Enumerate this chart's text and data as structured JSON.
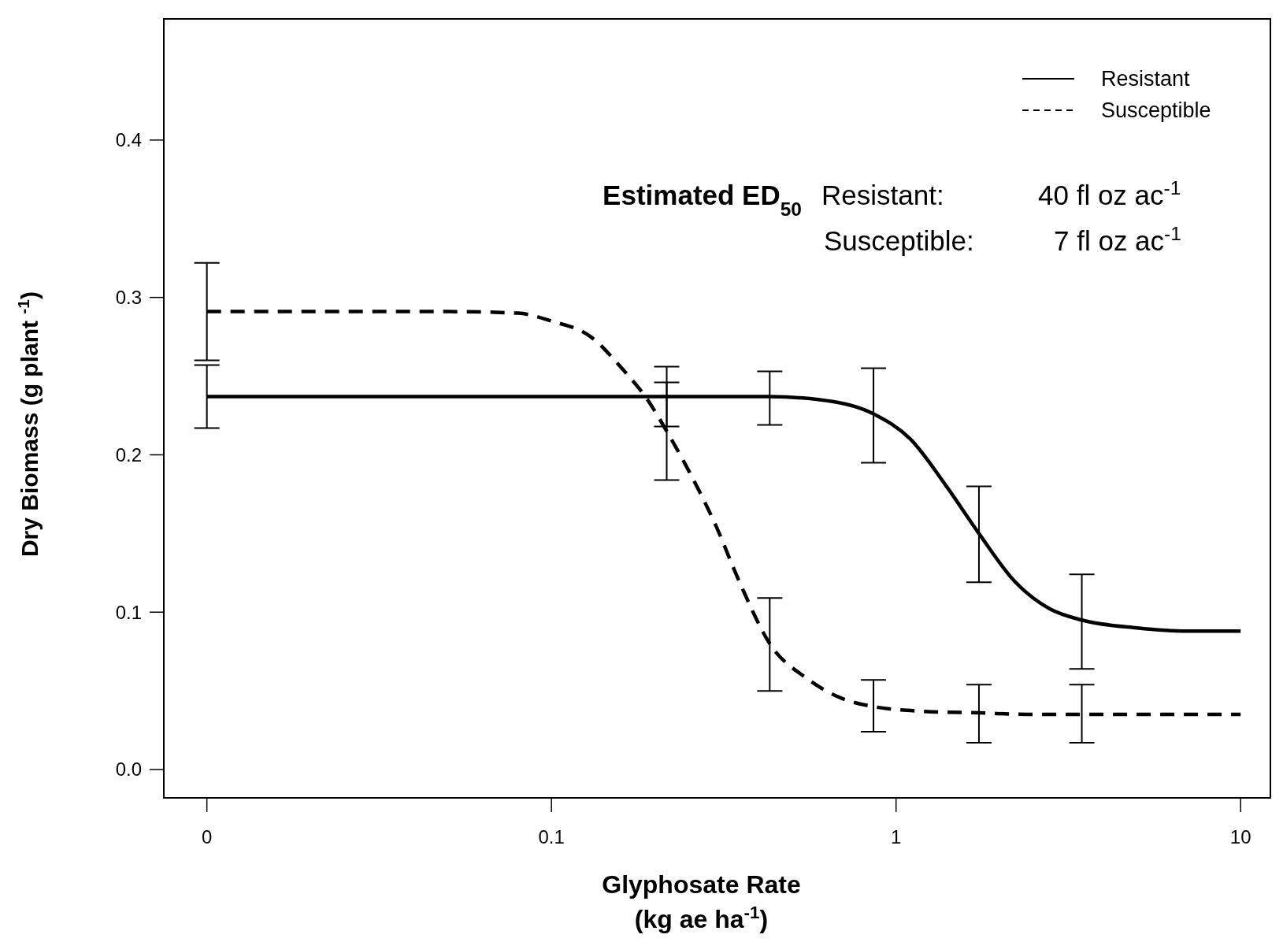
{
  "chart_data": {
    "type": "line",
    "xlabel": "Glyphosate Rate\n(kg ae ha$^{-1}$)",
    "ylabel": "Dry Biomass (g plant $^{-1}$)",
    "log": "x",
    "xlim": [
      0.0075,
      12.2
    ],
    "ylim": [
      -0.018,
      0.477
    ],
    "xticks": [
      {
        "value": 0.01,
        "label": "0"
      },
      0.1,
      1,
      10
    ],
    "yticks": [
      {
        "value": 0,
        "label": "0.0"
      },
      0.1,
      0.2,
      0.3,
      0.4
    ],
    "grid": false,
    "legend": "top right",
    "marker": "none",
    "series": [
      {
        "name": "Resistant",
        "color": "#000000",
        "line_style": "solid",
        "x": [
          0.01,
          0.05,
          0.1,
          0.216,
          0.43,
          0.6,
          0.86,
          1.1,
          1.4,
          1.74,
          2.2,
          2.8,
          3.46,
          5,
          7,
          10
        ],
        "values": [
          0.237,
          0.237,
          0.237,
          0.237,
          0.237,
          0.235,
          0.226,
          0.21,
          0.18,
          0.15,
          0.12,
          0.102,
          0.095,
          0.09,
          0.088,
          0.088
        ],
        "errors": [
          [
            0.217,
            0.257
          ],
          null,
          null,
          [
            0.218,
            0.256
          ],
          [
            0.219,
            0.253
          ],
          null,
          [
            0.195,
            0.255
          ],
          null,
          null,
          [
            0.119,
            0.18
          ],
          null,
          null,
          [
            0.064,
            0.124
          ],
          null,
          null,
          null
        ]
      },
      {
        "name": "Susceptible",
        "color": "#000000",
        "line_style": "dashed",
        "x": [
          0.01,
          0.05,
          0.08,
          0.1,
          0.13,
          0.16,
          0.19,
          0.216,
          0.25,
          0.3,
          0.35,
          0.43,
          0.55,
          0.7,
          0.86,
          1.2,
          1.74,
          2.5,
          3.46,
          5,
          10
        ],
        "values": [
          0.291,
          0.291,
          0.29,
          0.285,
          0.275,
          0.255,
          0.235,
          0.215,
          0.19,
          0.155,
          0.12,
          0.08,
          0.058,
          0.045,
          0.04,
          0.037,
          0.036,
          0.035,
          0.035,
          0.035,
          0.035
        ],
        "errors": [
          [
            0.26,
            0.322
          ],
          null,
          null,
          null,
          null,
          null,
          null,
          [
            0.184,
            0.246
          ],
          null,
          null,
          null,
          [
            0.05,
            0.109
          ],
          null,
          null,
          [
            0.024,
            0.057
          ],
          null,
          [
            0.017,
            0.054
          ],
          null,
          [
            0.017,
            0.054
          ],
          null,
          null
        ]
      }
    ],
    "annotations": [
      "Estimated ED$_{50}$",
      "Resistant:",
      "40 fl oz ac$^{-1}$",
      "Susceptible:",
      "7 fl oz ac$^{-1}$"
    ]
  }
}
